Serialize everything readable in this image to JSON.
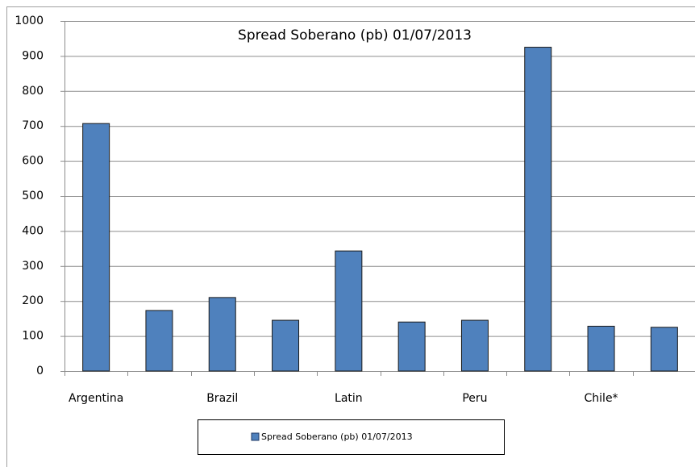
{
  "chart_data": {
    "type": "bar",
    "title": "Spread Soberano (pb) 01/07/2013",
    "categories": [
      "Argentina",
      null,
      "Brazil",
      null,
      "Latin",
      null,
      "Peru",
      null,
      "Chile*",
      null
    ],
    "series": [
      {
        "name": "Spread Soberano (pb) 01/07/2013",
        "color": "#4f81bd",
        "values": [
          707,
          173,
          210,
          145,
          343,
          140,
          145,
          925,
          128,
          125
        ]
      }
    ],
    "ylim": [
      0,
      1000
    ],
    "yticks": [
      0,
      100,
      200,
      300,
      400,
      500,
      600,
      700,
      800,
      900,
      1000
    ],
    "grid": true,
    "legend": "bottom"
  }
}
